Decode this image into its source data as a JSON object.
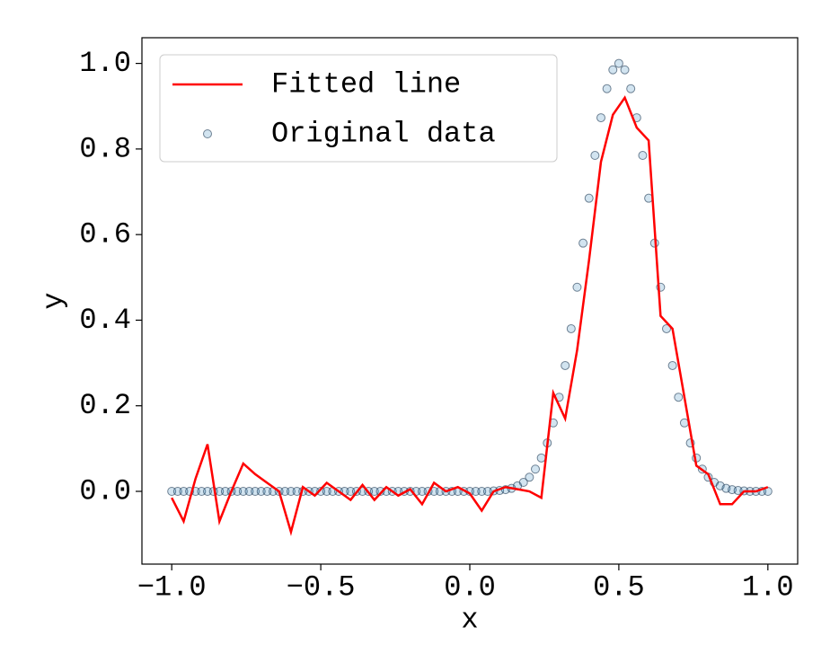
{
  "chart_data": {
    "type": "line-scatter",
    "xlabel": "x",
    "ylabel": "y",
    "xlim": [
      -1.1,
      1.1
    ],
    "ylim": [
      -0.17,
      1.06
    ],
    "xticks": [
      {
        "value": -1,
        "label": "−1.0"
      },
      {
        "value": -0.5,
        "label": "−0.5"
      },
      {
        "value": 0,
        "label": "0.0"
      },
      0.5,
      {
        "value": 1,
        "label": "1.0"
      }
    ],
    "yticks": [
      {
        "value": 0,
        "label": "0.0"
      },
      0.2,
      0.4,
      0.6,
      0.8,
      {
        "value": 1,
        "label": "1.0"
      }
    ],
    "legend": "upper left",
    "series": [
      {
        "name": "Fitted line",
        "kind": "line",
        "color": "#ff0000",
        "x": [
          -1,
          -0.96,
          -0.92,
          -0.88,
          -0.84,
          -0.8,
          -0.76,
          -0.72,
          -0.68,
          -0.64,
          -0.6,
          -0.56,
          -0.52,
          -0.48,
          -0.44,
          -0.4,
          -0.36,
          -0.32,
          -0.28,
          -0.24,
          -0.2,
          -0.16,
          -0.12,
          -0.08,
          -0.04,
          0,
          0.04,
          0.08,
          0.12,
          0.16,
          0.2,
          0.24,
          0.28,
          0.32,
          0.36,
          0.4,
          0.44,
          0.48,
          0.52,
          0.56,
          0.6,
          0.64,
          0.68,
          0.72,
          0.76,
          0.8,
          0.84,
          0.88,
          0.92,
          0.96,
          1
        ],
        "values": [
          -0.015,
          -0.07,
          0.03,
          0.11,
          -0.07,
          0,
          0.065,
          0.04,
          0.02,
          0,
          -0.095,
          0.01,
          -0.01,
          0.02,
          0,
          -0.02,
          0.015,
          -0.02,
          0.01,
          -0.01,
          0.005,
          -0.03,
          0.02,
          0,
          0.01,
          -0.005,
          -0.045,
          0,
          0.01,
          0.005,
          0,
          -0.015,
          0.23,
          0.17,
          0.33,
          0.54,
          0.77,
          0.88,
          0.92,
          0.85,
          0.82,
          0.41,
          0.38,
          0.22,
          0.06,
          0.04,
          -0.03,
          -0.03,
          0,
          0,
          0.01
        ]
      },
      {
        "name": "Original data",
        "kind": "scatter",
        "color": "#1f77b4",
        "x": [
          -1,
          -0.98,
          -0.96,
          -0.94,
          -0.92,
          -0.9,
          -0.88,
          -0.86,
          -0.84,
          -0.82,
          -0.8,
          -0.78,
          -0.76,
          -0.74,
          -0.72,
          -0.7,
          -0.68,
          -0.66,
          -0.64,
          -0.62,
          -0.6,
          -0.58,
          -0.56,
          -0.54,
          -0.52,
          -0.5,
          -0.48,
          -0.46,
          -0.44,
          -0.42,
          -0.4,
          -0.38,
          -0.36,
          -0.34,
          -0.32,
          -0.3,
          -0.28,
          -0.26,
          -0.24,
          -0.22,
          -0.2,
          -0.18,
          -0.16,
          -0.14,
          -0.12,
          -0.1,
          -0.08,
          -0.06,
          -0.04,
          -0.02,
          0,
          0.02,
          0.04,
          0.06,
          0.08,
          0.1,
          0.12,
          0.14,
          0.16,
          0.18,
          0.2,
          0.22,
          0.24,
          0.26,
          0.28,
          0.3,
          0.32,
          0.34,
          0.36,
          0.38,
          0.4,
          0.42,
          0.44,
          0.46,
          0.48,
          0.5,
          0.52,
          0.54,
          0.56,
          0.58,
          0.6,
          0.62,
          0.64,
          0.66,
          0.68,
          0.7,
          0.72,
          0.74,
          0.76,
          0.78,
          0.8,
          0.82,
          0.84,
          0.86,
          0.88,
          0.9,
          0.92,
          0.94,
          0.96,
          0.98,
          1
        ],
        "values": [
          0,
          0,
          0,
          0,
          0,
          0,
          0,
          0,
          0,
          0,
          0,
          0,
          0,
          0,
          0,
          0,
          0,
          0,
          0,
          0,
          0,
          0,
          0,
          0,
          0,
          0,
          0,
          0,
          0,
          0,
          0,
          0,
          0,
          0,
          0,
          0,
          0,
          0,
          0,
          0,
          0,
          0,
          0,
          0,
          0,
          0,
          0,
          0,
          0,
          0,
          0,
          0,
          0,
          0,
          0.001,
          0.002,
          0.004,
          0.007,
          0.013,
          0.021,
          0.033,
          0.052,
          0.078,
          0.113,
          0.16,
          0.22,
          0.294,
          0.38,
          0.477,
          0.58,
          0.685,
          0.785,
          0.873,
          0.941,
          0.985,
          1,
          0.985,
          0.941,
          0.873,
          0.785,
          0.685,
          0.58,
          0.477,
          0.38,
          0.294,
          0.22,
          0.16,
          0.113,
          0.078,
          0.052,
          0.033,
          0.021,
          0.013,
          0.007,
          0.004,
          0.002,
          0.001,
          0,
          0,
          0,
          0
        ]
      }
    ]
  }
}
